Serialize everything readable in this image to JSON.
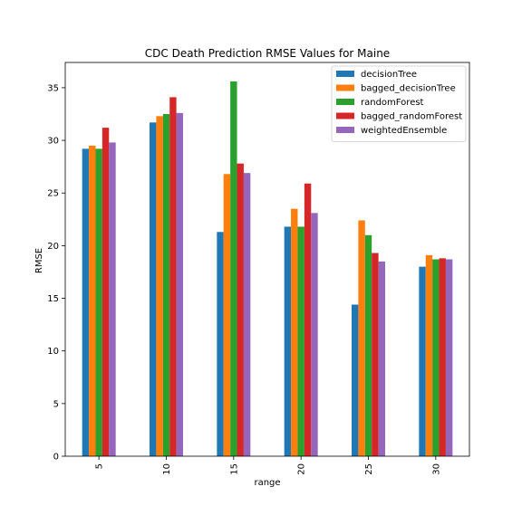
{
  "chart_data": {
    "type": "bar",
    "title": "CDC Death Prediction RMSE Values for Maine",
    "xlabel": "range",
    "ylabel": "RMSE",
    "ylim": [
      0,
      37.4
    ],
    "yticks": [
      0,
      5,
      10,
      15,
      20,
      25,
      30,
      35
    ],
    "categories": [
      "5",
      "10",
      "15",
      "20",
      "25",
      "30"
    ],
    "legend_position": "top-right",
    "grid": false,
    "series": [
      {
        "name": "decisionTree",
        "color": "#1f77b4",
        "values": [
          29.2,
          31.7,
          21.3,
          21.8,
          14.4,
          18.0
        ]
      },
      {
        "name": "bagged_decisionTree",
        "color": "#ff7f0e",
        "values": [
          29.5,
          32.3,
          26.8,
          23.5,
          22.4,
          19.1
        ]
      },
      {
        "name": "randomForest",
        "color": "#2ca02c",
        "values": [
          29.2,
          32.5,
          35.6,
          21.8,
          21.0,
          18.7
        ]
      },
      {
        "name": "bagged_randomForest",
        "color": "#d62728",
        "values": [
          31.2,
          34.1,
          27.8,
          25.9,
          19.3,
          18.8
        ]
      },
      {
        "name": "weightedEnsemble",
        "color": "#9467bd",
        "values": [
          29.8,
          32.6,
          26.9,
          23.1,
          18.5,
          18.7
        ]
      }
    ]
  }
}
